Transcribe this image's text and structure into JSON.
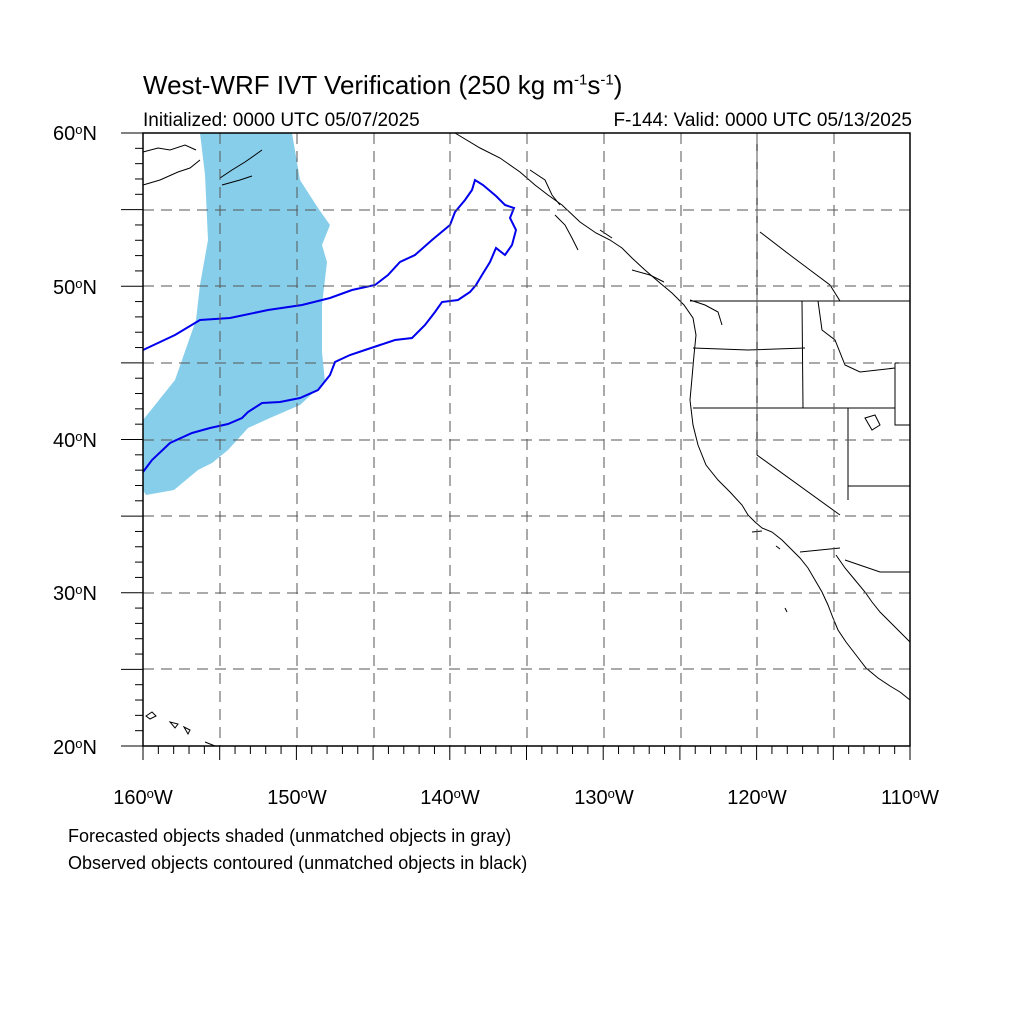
{
  "title": {
    "main": "West-WRF IVT Verification (250 kg m",
    "exp1": "-1",
    "mid": "s",
    "exp2": "-1",
    "close": ")"
  },
  "subtitle_left": "Initialized: 0000 UTC 05/07/2025",
  "subtitle_right": "F-144: Valid: 0000 UTC 05/13/2025",
  "lat_labels": [
    {
      "num": "60",
      "hem": "N"
    },
    {
      "num": "50",
      "hem": "N"
    },
    {
      "num": "40",
      "hem": "N"
    },
    {
      "num": "30",
      "hem": "N"
    },
    {
      "num": "20",
      "hem": "N"
    }
  ],
  "lon_labels": [
    {
      "num": "160",
      "hem": "W"
    },
    {
      "num": "150",
      "hem": "W"
    },
    {
      "num": "140",
      "hem": "W"
    },
    {
      "num": "130",
      "hem": "W"
    },
    {
      "num": "120",
      "hem": "W"
    },
    {
      "num": "110",
      "hem": "W"
    }
  ],
  "footnotes": [
    "Forecasted objects shaded (unmatched objects in gray)",
    "Observed objects contoured (unmatched objects in black)"
  ],
  "map": {
    "lon_range": [
      -160,
      -110
    ],
    "lat_range": [
      20,
      60
    ],
    "forecast_fill_color": "#87ceeb",
    "observed_contour_color": "#0000ee",
    "gridline_color": "#555555"
  }
}
